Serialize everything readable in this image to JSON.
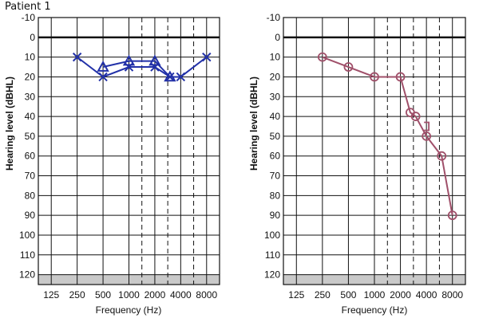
{
  "page_title": "Patient 1",
  "chart_data": [
    {
      "type": "line",
      "chart_kind": "audiogram",
      "xlabel": "Frequency (Hz)",
      "ylabel": "Hearing level (dBHL)",
      "x_ticks": [
        "125",
        "250",
        "500",
        "1000",
        "2000",
        "4000",
        "8000"
      ],
      "y_ticks": [
        "-10",
        "0",
        "10",
        "20",
        "30",
        "40",
        "50",
        "60",
        "70",
        "80",
        "90",
        "100",
        "110",
        "120"
      ],
      "ylim": [
        -10,
        125
      ],
      "y_inverted": true,
      "x_scale": "log2",
      "grid": true,
      "shaded_region": [
        120,
        125
      ],
      "color": "#2231a8",
      "series": [
        {
          "marker": "x",
          "points": [
            {
              "x": 250,
              "y": 10
            },
            {
              "x": 500,
              "y": 20
            },
            {
              "x": 1000,
              "y": 15
            },
            {
              "x": 2000,
              "y": 15
            },
            {
              "x": 3000,
              "y": 20
            },
            {
              "x": 4000,
              "y": 20
            },
            {
              "x": 8000,
              "y": 10
            }
          ]
        },
        {
          "marker": "triangle",
          "points": [
            {
              "x": 500,
              "y": 15
            },
            {
              "x": 1000,
              "y": 12
            },
            {
              "x": 2000,
              "y": 12
            },
            {
              "x": 3000,
              "y": 20
            }
          ]
        }
      ]
    },
    {
      "type": "line",
      "chart_kind": "audiogram",
      "xlabel": "Frequency (Hz)",
      "ylabel": "Hearing level (dBHL)",
      "x_ticks": [
        "125",
        "250",
        "500",
        "1000",
        "2000",
        "4000",
        "8000"
      ],
      "y_ticks": [
        "-10",
        "0",
        "10",
        "20",
        "30",
        "40",
        "50",
        "60",
        "70",
        "80",
        "90",
        "100",
        "110",
        "120"
      ],
      "ylim": [
        -10,
        125
      ],
      "y_inverted": true,
      "x_scale": "log2",
      "grid": true,
      "shaded_region": [
        120,
        125
      ],
      "color": "#a0506a",
      "series": [
        {
          "marker": "circle",
          "points": [
            {
              "x": 250,
              "y": 10
            },
            {
              "x": 500,
              "y": 15
            },
            {
              "x": 1000,
              "y": 20
            },
            {
              "x": 2000,
              "y": 20
            },
            {
              "x": 2600,
              "y": 38
            },
            {
              "x": 3000,
              "y": 40
            },
            {
              "x": 4000,
              "y": 50
            },
            {
              "x": 6000,
              "y": 60
            },
            {
              "x": 8000,
              "y": 90
            }
          ]
        },
        {
          "marker": "square-bracket",
          "points": [
            {
              "x": 4000,
              "y": 45
            }
          ]
        }
      ]
    }
  ]
}
